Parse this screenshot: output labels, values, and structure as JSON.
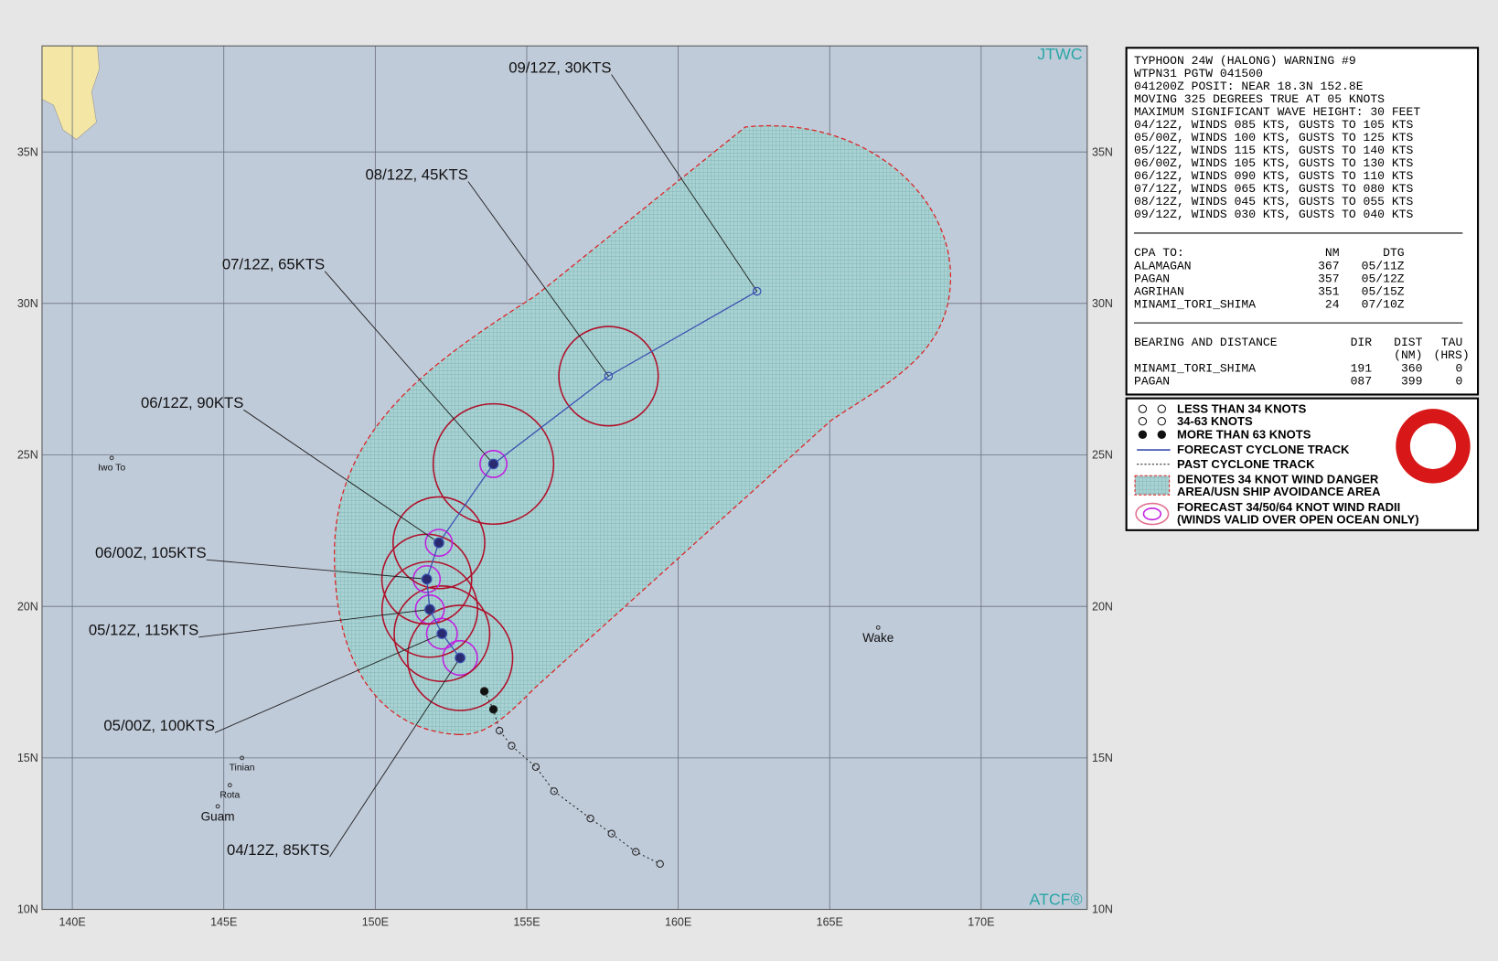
{
  "map": {
    "lonlim": [
      139,
      173.5
    ],
    "latlim": [
      10,
      38.5
    ],
    "lonticks": [
      {
        "value": 140,
        "label": "140E"
      },
      {
        "value": 145,
        "label": "145E"
      },
      {
        "value": 150,
        "label": "150E"
      },
      {
        "value": 155,
        "label": "155E"
      },
      {
        "value": 160,
        "label": "160E"
      },
      {
        "value": 165,
        "label": "165E"
      },
      {
        "value": 170,
        "label": "170E"
      }
    ],
    "latticks": [
      {
        "value": 10,
        "label": "10N"
      },
      {
        "value": 15,
        "label": "15N"
      },
      {
        "value": 20,
        "label": "20N"
      },
      {
        "value": 25,
        "label": "25N"
      },
      {
        "value": 30,
        "label": "30N"
      },
      {
        "value": 35,
        "label": "35N"
      }
    ],
    "agency": "JTWC",
    "system": "ATCF®",
    "places": [
      {
        "name": "Iwo To",
        "lon": 141.3,
        "lat": 24.9
      },
      {
        "name": "Wake",
        "lon": 166.6,
        "lat": 19.3
      },
      {
        "name": "Tinian",
        "lon": 145.6,
        "lat": 15.0
      },
      {
        "name": "Rota",
        "lon": 145.2,
        "lat": 14.1
      },
      {
        "name": "Guam",
        "lon": 144.8,
        "lat": 13.4
      }
    ],
    "forecast_track": [
      {
        "label": "04/12Z,  85KTS",
        "lon": 152.8,
        "lat": 18.3
      },
      {
        "label": "05/00Z,  100KTS",
        "lon": 152.2,
        "lat": 19.1
      },
      {
        "label": "05/12Z,  115KTS",
        "lon": 151.8,
        "lat": 19.9
      },
      {
        "label": "06/00Z,  105KTS",
        "lon": 151.7,
        "lat": 20.9
      },
      {
        "label": "06/12Z,  90KTS",
        "lon": 152.1,
        "lat": 22.1
      },
      {
        "label": "07/12Z,  65KTS",
        "lon": 153.9,
        "lat": 24.7
      },
      {
        "label": "08/12Z,  45KTS",
        "lon": 157.7,
        "lat": 27.6
      },
      {
        "label": "09/12Z,  30KTS",
        "lon": 162.6,
        "lat": 30.4
      }
    ],
    "past_track": {
      "lon": [
        153.6,
        153.9,
        154.1,
        154.5,
        155.3,
        155.9,
        157.1,
        157.8,
        158.6,
        159.4
      ],
      "lat": [
        17.2,
        16.6,
        15.9,
        15.4,
        14.7,
        13.9,
        13.0,
        12.5,
        11.9,
        11.5
      ]
    }
  },
  "warning": {
    "lines": [
      "TYPHOON 24W (HALONG) WARNING #9",
      "WTPN31 PGTW 041500",
      "041200Z POSIT: NEAR 18.3N 152.8E",
      "MOVING 325 DEGREES TRUE AT 05 KNOTS",
      "MAXIMUM SIGNIFICANT WAVE HEIGHT: 30 FEET",
      "04/12Z, WINDS 085 KTS, GUSTS TO 105 KTS",
      "05/00Z, WINDS 100 KTS, GUSTS TO 125 KTS",
      "05/12Z, WINDS 115 KTS, GUSTS TO 140 KTS",
      "06/00Z, WINDS 105 KTS, GUSTS TO 130 KTS",
      "06/12Z, WINDS 090 KTS, GUSTS TO 110 KTS",
      "07/12Z, WINDS 065 KTS, GUSTS TO 080 KTS",
      "08/12Z, WINDS 045 KTS, GUSTS TO 055 KTS",
      "09/12Z, WINDS 030 KTS, GUSTS TO 040 KTS"
    ],
    "cpa": {
      "header": [
        "CPA  TO:",
        "NM",
        "DTG"
      ],
      "rows": [
        [
          "ALAMAGAN",
          "367",
          "05/11Z"
        ],
        [
          "PAGAN",
          "357",
          "05/12Z"
        ],
        [
          "AGRIHAN",
          "351",
          "05/15Z"
        ],
        [
          "MINAMI_TORI_SHIMA",
          "24",
          "07/10Z"
        ]
      ]
    },
    "bearing": {
      "header": [
        "BEARING AND DISTANCE",
        "DIR",
        "DIST",
        "TAU"
      ],
      "subheader": [
        "(NM)",
        "(HRS)"
      ],
      "rows": [
        [
          "MINAMI_TORI_SHIMA",
          "191",
          "360",
          "0"
        ],
        [
          "PAGAN",
          "087",
          "399",
          "0"
        ]
      ]
    }
  },
  "legend": [
    "LESS THAN 34 KNOTS",
    "34-63 KNOTS",
    "MORE THAN 63 KNOTS",
    "FORECAST CYCLONE TRACK",
    "PAST CYCLONE TRACK",
    "DENOTES 34 KNOT WIND DANGER",
    "AREA/USN SHIP AVOIDANCE AREA",
    "FORECAST 34/50/64 KNOT WIND RADII",
    "(WINDS VALID OVER OPEN OCEAN ONLY)"
  ]
}
